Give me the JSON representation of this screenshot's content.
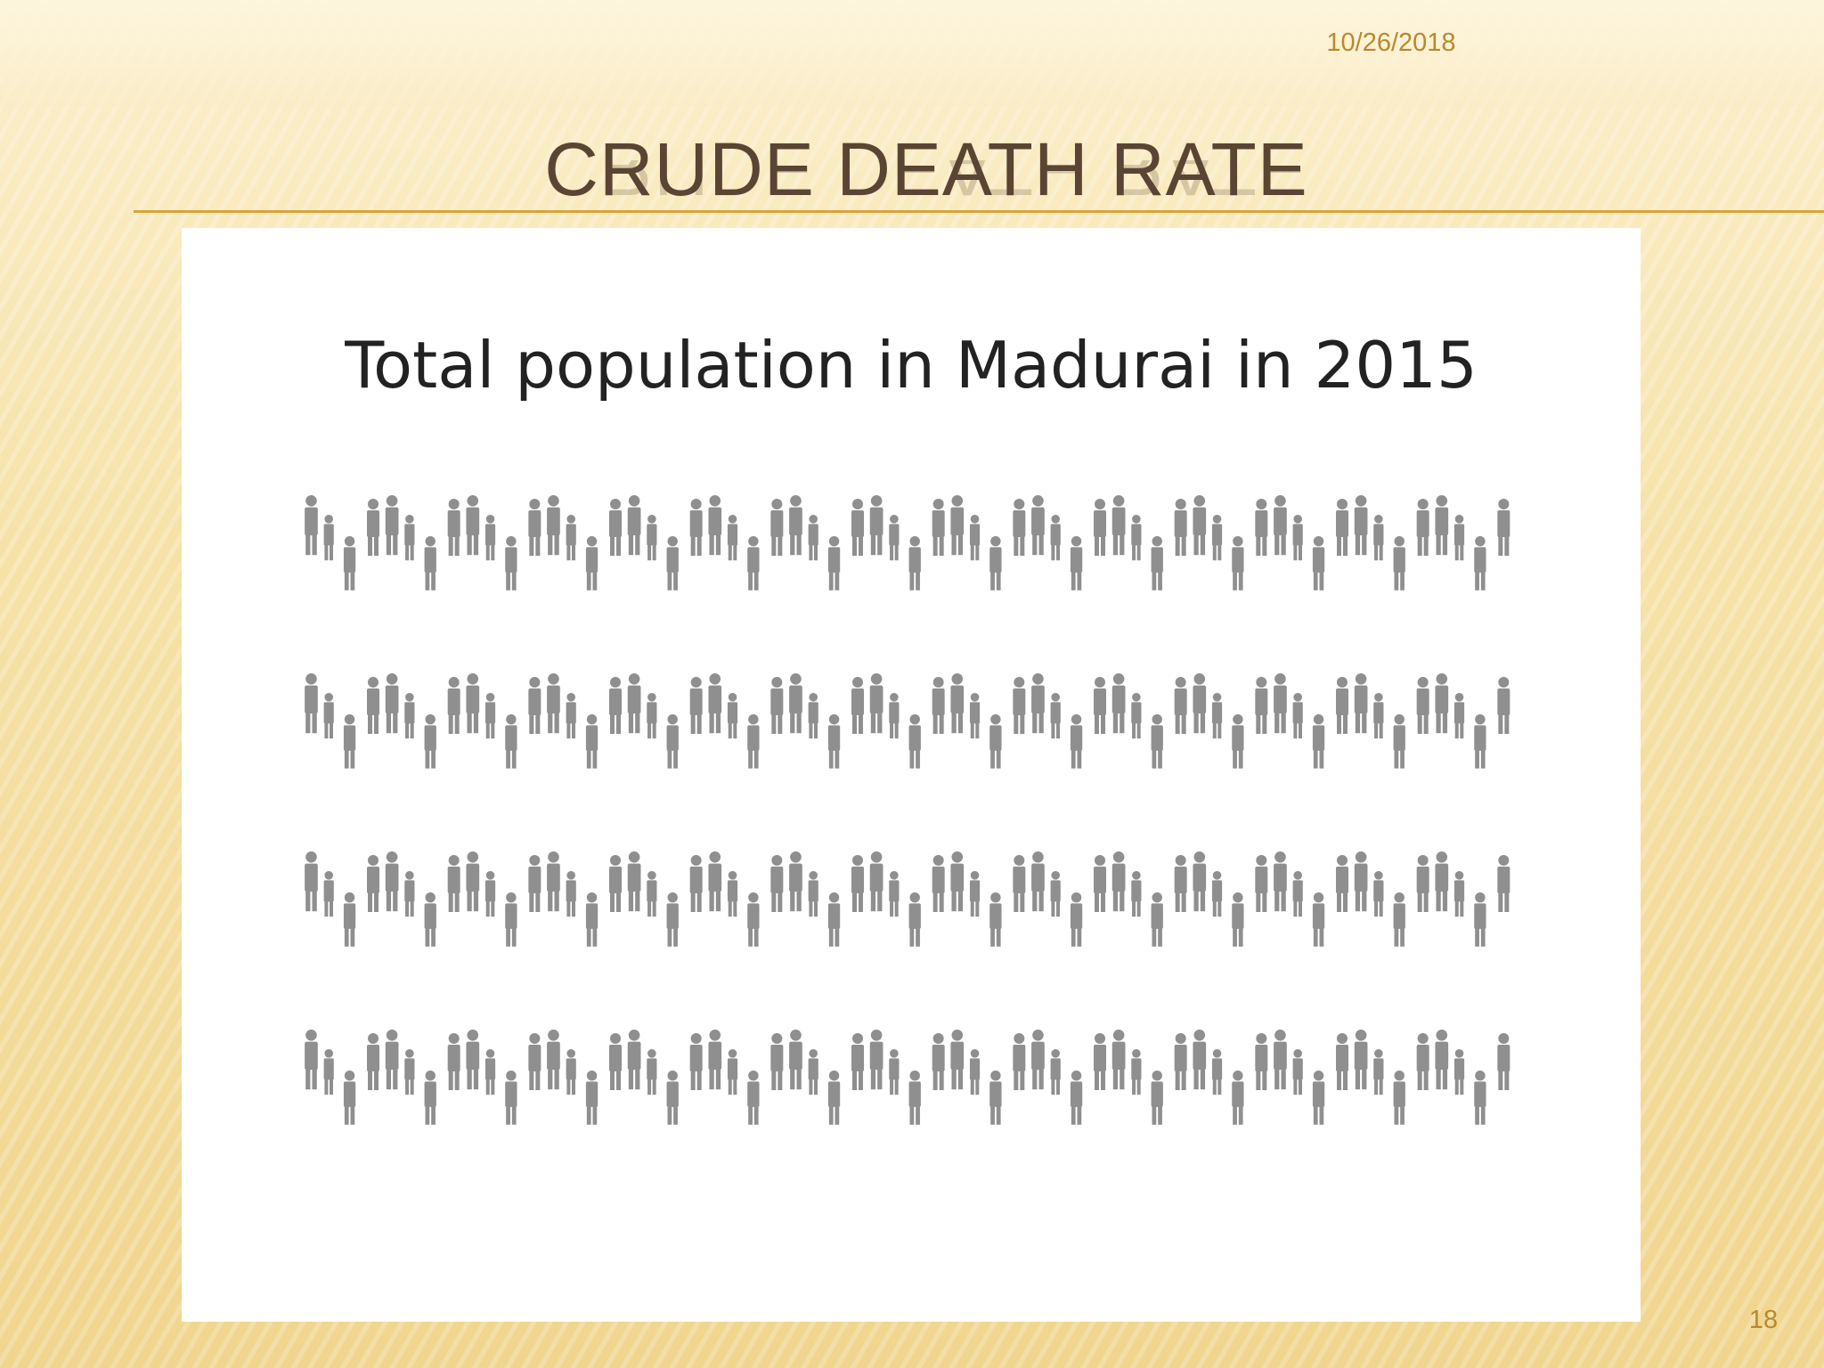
{
  "slide": {
    "date": "10/26/2018",
    "title": "CRUDE DEATH RATE",
    "slide_number": "18"
  },
  "image": {
    "heading": "Total population in Madurai in 2015",
    "figure_rows": 4,
    "figure_groups_per_row": 15,
    "figure_color": "#8f8f8f"
  },
  "colors": {
    "title": "#5a4433",
    "accent": "#d7a43a",
    "meta_text": "#b9892c"
  }
}
